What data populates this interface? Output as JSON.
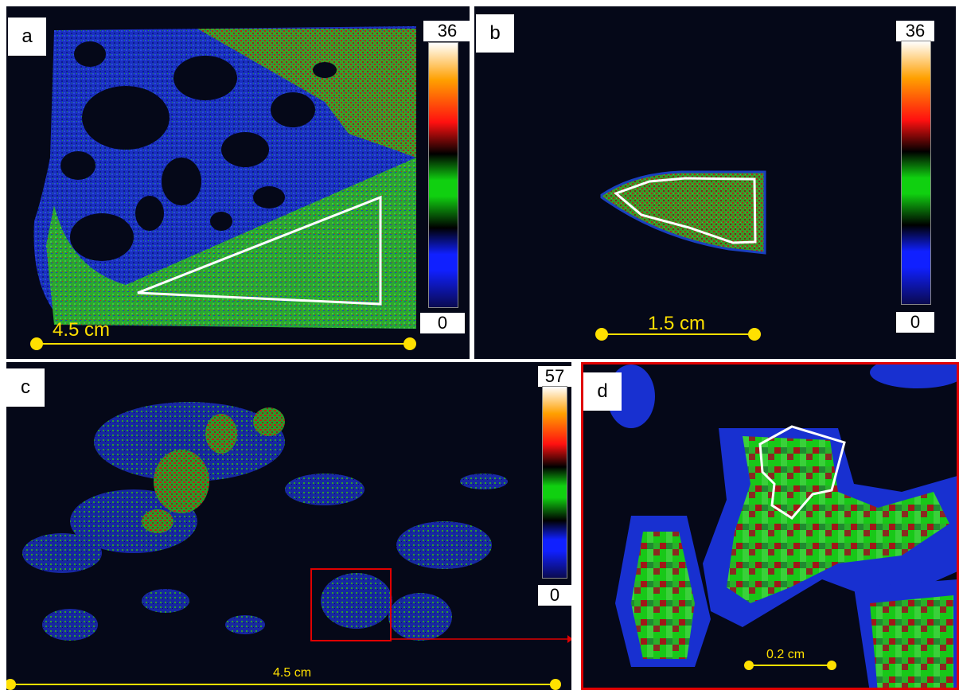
{
  "panels": {
    "a": {
      "letter": "a",
      "cb_max": "36",
      "cb_min": "0",
      "scale": "4.5 cm"
    },
    "b": {
      "letter": "b",
      "cb_max": "36",
      "cb_min": "0",
      "scale": "1.5 cm"
    },
    "c": {
      "letter": "c",
      "cb_max": "57",
      "cb_min": "0",
      "scale": "4.5 cm"
    },
    "d": {
      "letter": "d",
      "scale": "0.2 cm"
    }
  },
  "colors": {
    "background": "#050818",
    "roi_outline": "#ffffff",
    "scale_bar": "#ffe000",
    "inset_box": "#e00000",
    "colormap": [
      "#0a0a50",
      "#1020ff",
      "#000000",
      "#10d010",
      "#000000",
      "#ff1010",
      "#ffa000",
      "#ffffff"
    ]
  }
}
